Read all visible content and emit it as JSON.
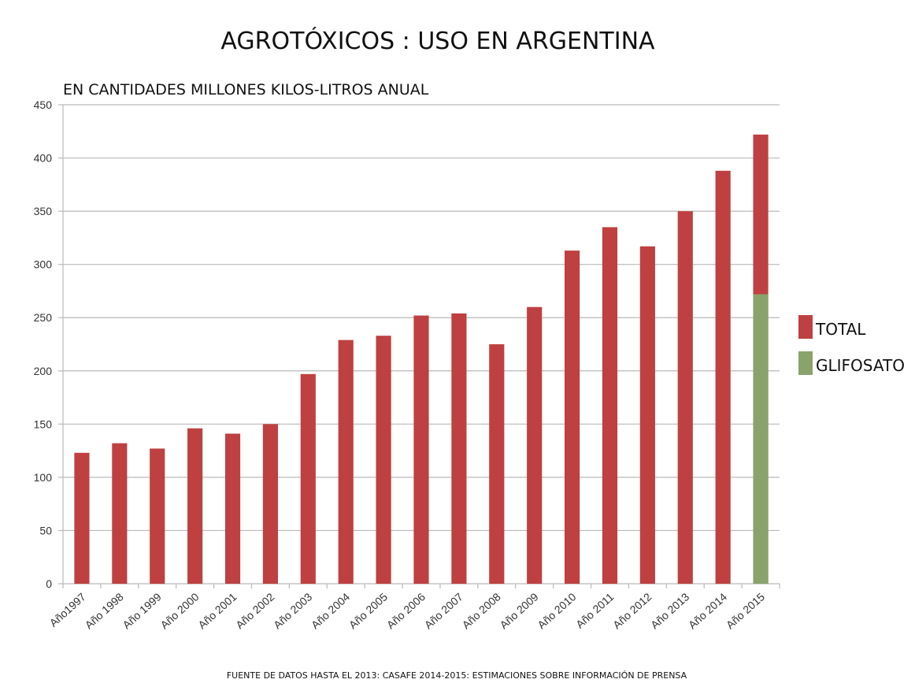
{
  "chart_data": {
    "type": "bar",
    "title": "AGROTÓXICOS : USO EN ARGENTINA",
    "subtitle": "EN CANTIDADES MILLONES KILOS-LITROS ANUAL",
    "xlabel": "",
    "ylabel": "",
    "ylim": [
      0,
      450
    ],
    "yticks": [
      0,
      50,
      100,
      150,
      200,
      250,
      300,
      350,
      400,
      450
    ],
    "grid": true,
    "legend_position": "right",
    "categories": [
      "Año1997",
      "Año 1998",
      "Año 1999",
      "Año 2000",
      "Año 2001",
      "Año 2002",
      "Año 2003",
      "Año 2004",
      "Año 2005",
      "Año 2006",
      "Año 2007",
      "Año 2008",
      "Año 2009",
      "Año 2010",
      "Año 2011",
      "Año 2012",
      "Año 2013",
      "Año 2014",
      "Año 2015"
    ],
    "series": [
      {
        "name": "TOTAL",
        "color": "#bf4040",
        "values": [
          123,
          132,
          127,
          146,
          141,
          150,
          197,
          229,
          233,
          252,
          254,
          225,
          260,
          313,
          335,
          317,
          350,
          388,
          422
        ]
      },
      {
        "name": "GLIFOSATO",
        "color": "#8aa36a",
        "values": [
          null,
          null,
          null,
          null,
          null,
          null,
          null,
          null,
          null,
          null,
          null,
          null,
          null,
          null,
          null,
          null,
          null,
          null,
          272
        ]
      }
    ],
    "source_note": "FUENTE DE DATOS HASTA EL 2013: CASAFE  2014-2015: ESTIMACIONES SOBRE INFORMACIÓN DE PRENSA"
  }
}
